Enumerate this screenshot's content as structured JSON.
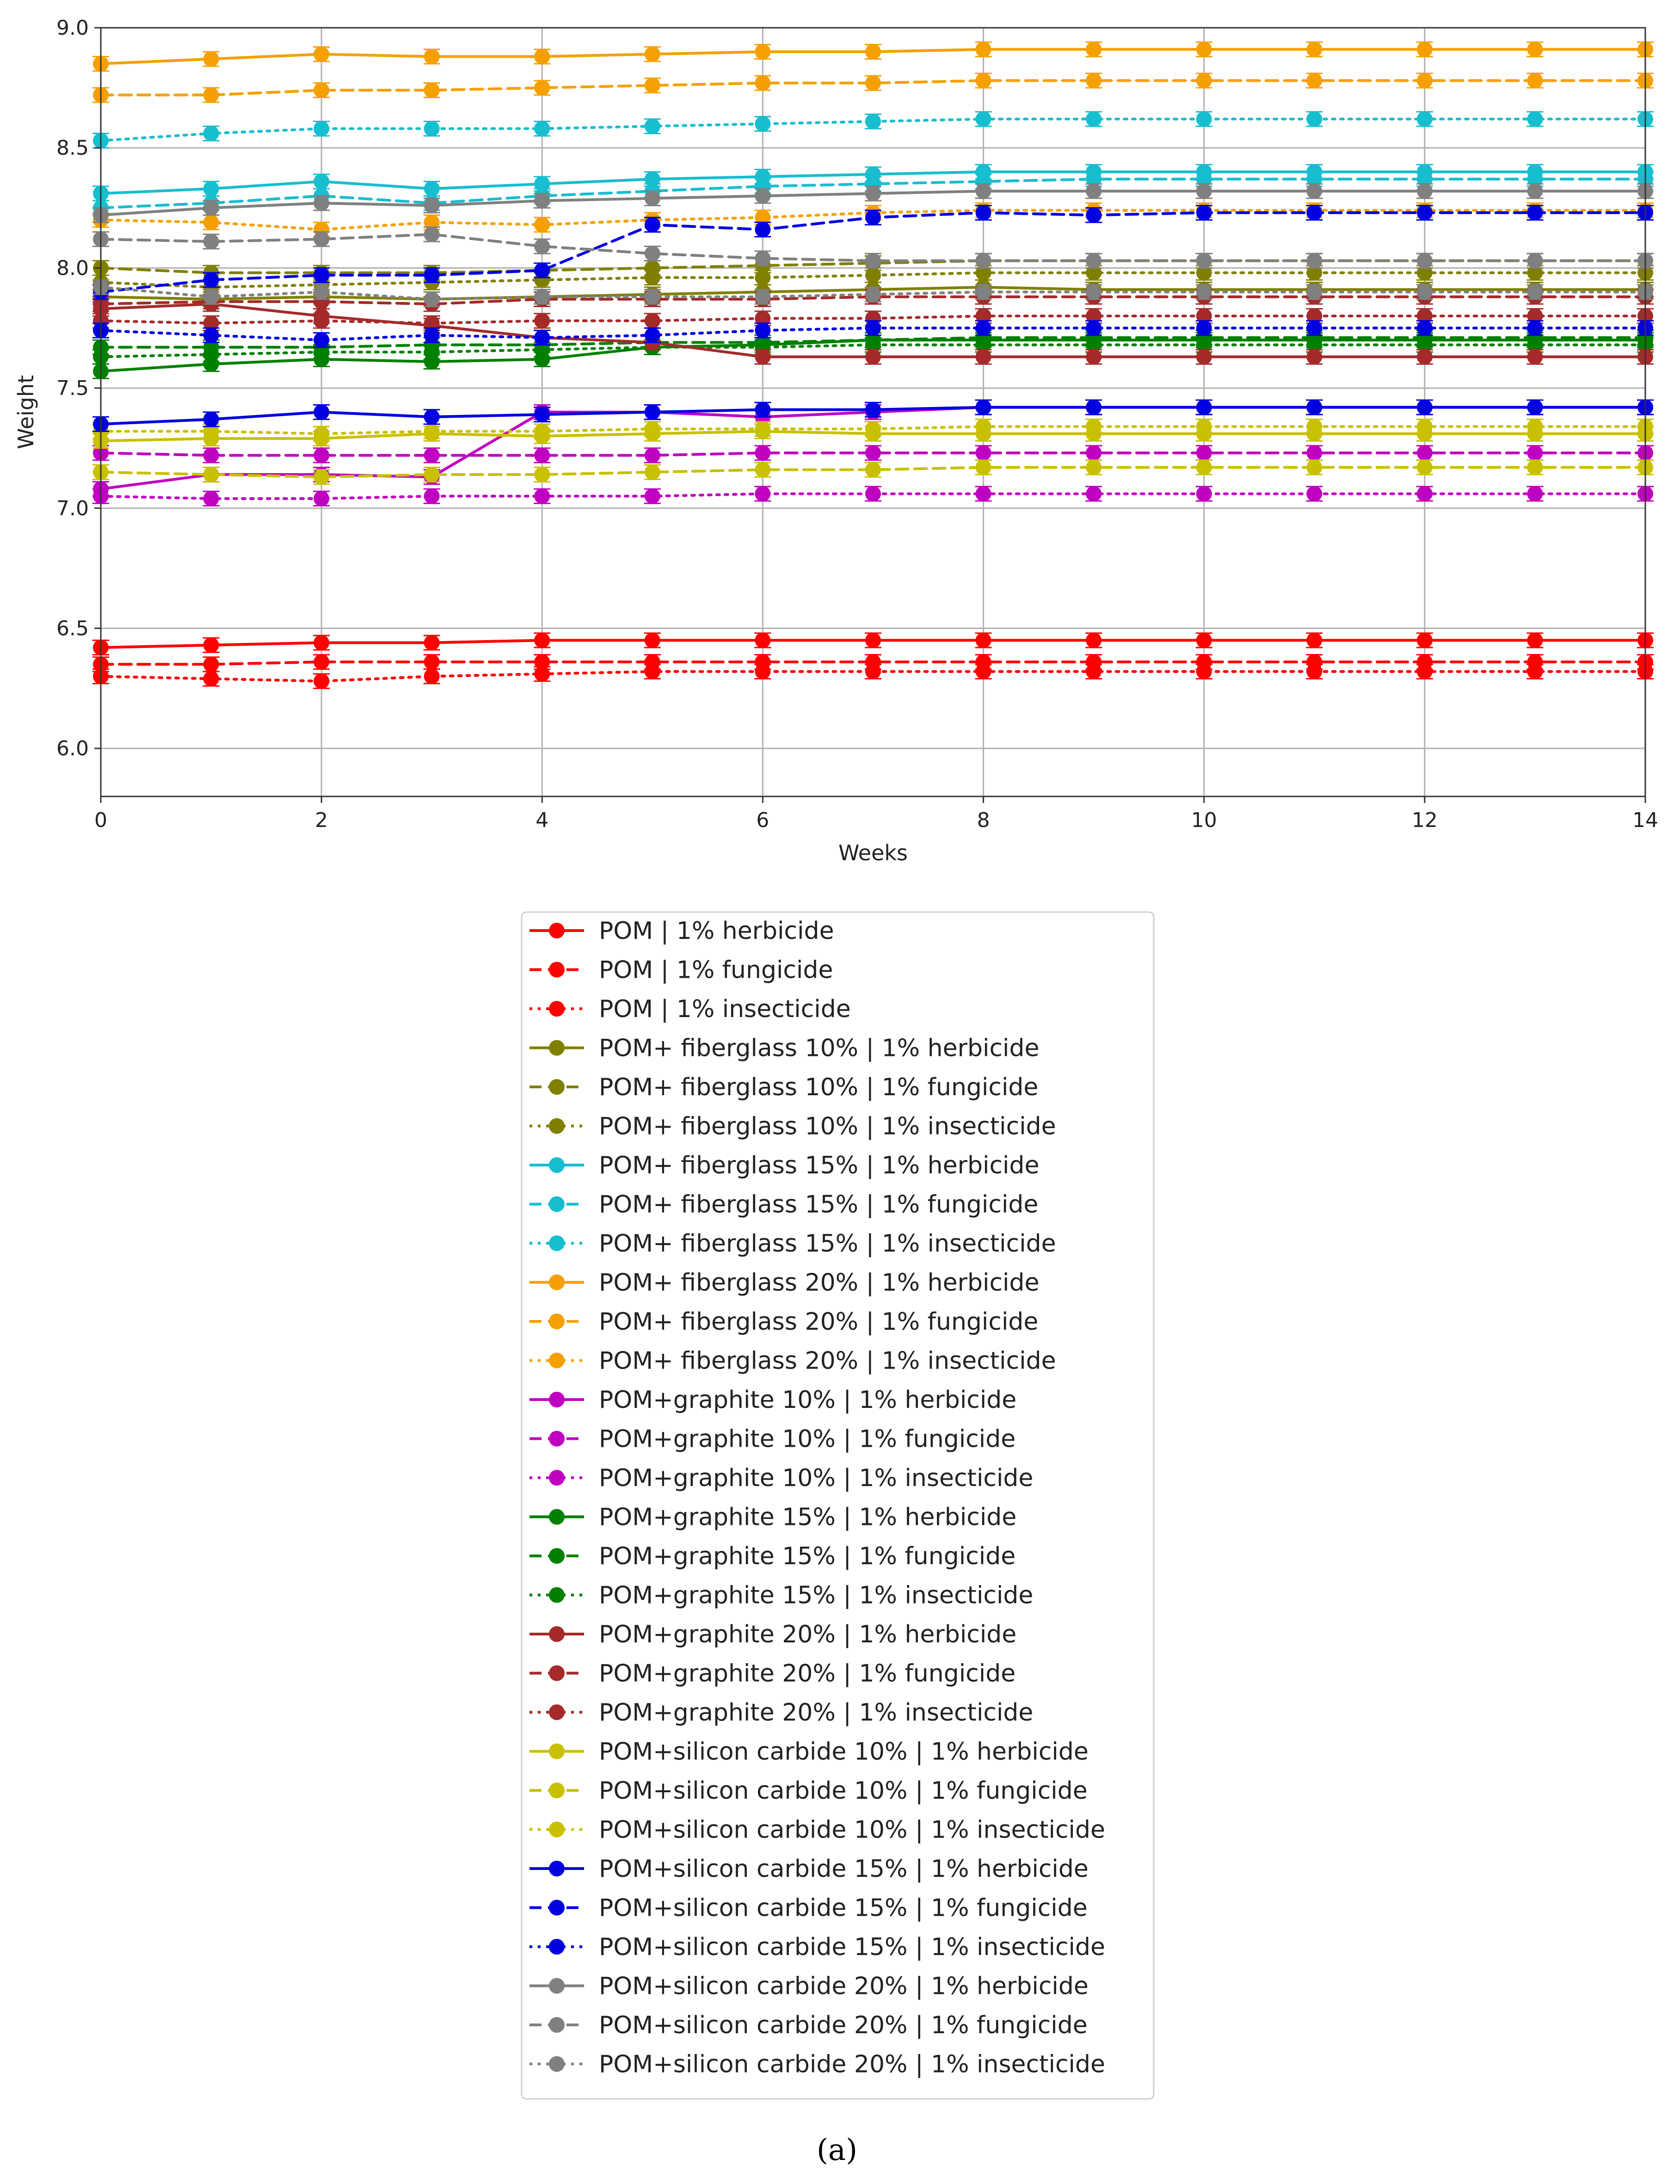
{
  "chart_data": {
    "type": "line",
    "title": "",
    "xlabel": "Weeks",
    "ylabel": "Weight",
    "xlim": [
      0,
      14
    ],
    "ylim": [
      5.8,
      9.0
    ],
    "xticks": [
      0,
      2,
      4,
      6,
      8,
      10,
      12,
      14
    ],
    "xtick_labels": [
      "0",
      "2",
      "4",
      "6",
      "8",
      "10",
      "12",
      "14"
    ],
    "yticks": [
      6.0,
      6.5,
      7.0,
      7.5,
      8.0,
      8.5,
      9.0
    ],
    "ytick_labels": [
      "6.0",
      "6.5",
      "7.0",
      "7.5",
      "8.0",
      "8.5",
      "9.0"
    ],
    "grid": true,
    "legend_position": "below",
    "caption": "(a)",
    "x": [
      0,
      1,
      2,
      3,
      4,
      5,
      6,
      7,
      8,
      9,
      10,
      11,
      12,
      13,
      14
    ],
    "series": [
      {
        "name": "POM | 1% herbicide",
        "color": "#ff0000",
        "dash": "solid",
        "values": [
          6.42,
          6.43,
          6.44,
          6.44,
          6.45,
          6.45,
          6.45,
          6.45,
          6.45,
          6.45,
          6.45,
          6.45,
          6.45,
          6.45,
          6.45
        ]
      },
      {
        "name": "POM | 1% fungicide",
        "color": "#ff0000",
        "dash": "dashed",
        "values": [
          6.35,
          6.35,
          6.36,
          6.36,
          6.36,
          6.36,
          6.36,
          6.36,
          6.36,
          6.36,
          6.36,
          6.36,
          6.36,
          6.36,
          6.36
        ]
      },
      {
        "name": "POM | 1% insecticide",
        "color": "#ff0000",
        "dash": "dotted",
        "values": [
          6.3,
          6.29,
          6.28,
          6.3,
          6.31,
          6.32,
          6.32,
          6.32,
          6.32,
          6.32,
          6.32,
          6.32,
          6.32,
          6.32,
          6.32
        ]
      },
      {
        "name": "POM+ fiberglass 10% | 1% herbicide",
        "color": "#808000",
        "dash": "solid",
        "values": [
          7.88,
          7.87,
          7.88,
          7.87,
          7.88,
          7.89,
          7.9,
          7.91,
          7.92,
          7.91,
          7.91,
          7.91,
          7.91,
          7.91,
          7.91
        ]
      },
      {
        "name": "POM+ fiberglass 10% | 1% fungicide",
        "color": "#808000",
        "dash": "dashed",
        "values": [
          8.0,
          7.98,
          7.98,
          7.98,
          7.99,
          8.0,
          8.01,
          8.02,
          8.03,
          8.03,
          8.03,
          8.03,
          8.03,
          8.03,
          8.03
        ]
      },
      {
        "name": "POM+ fiberglass 10% | 1% insecticide",
        "color": "#808000",
        "dash": "dotted",
        "values": [
          7.94,
          7.92,
          7.93,
          7.94,
          7.95,
          7.96,
          7.96,
          7.97,
          7.98,
          7.98,
          7.98,
          7.98,
          7.98,
          7.98,
          7.98
        ]
      },
      {
        "name": "POM+ fiberglass 15% | 1% herbicide",
        "color": "#17becf",
        "dash": "solid",
        "values": [
          8.31,
          8.33,
          8.36,
          8.33,
          8.35,
          8.37,
          8.38,
          8.39,
          8.4,
          8.4,
          8.4,
          8.4,
          8.4,
          8.4,
          8.4
        ]
      },
      {
        "name": "POM+ fiberglass 15% | 1% fungicide",
        "color": "#17becf",
        "dash": "dashed",
        "values": [
          8.25,
          8.27,
          8.3,
          8.27,
          8.3,
          8.32,
          8.34,
          8.35,
          8.36,
          8.37,
          8.37,
          8.37,
          8.37,
          8.37,
          8.37
        ]
      },
      {
        "name": "POM+ fiberglass 15% | 1% insecticide",
        "color": "#17becf",
        "dash": "dotted",
        "values": [
          8.53,
          8.56,
          8.58,
          8.58,
          8.58,
          8.59,
          8.6,
          8.61,
          8.62,
          8.62,
          8.62,
          8.62,
          8.62,
          8.62,
          8.62
        ]
      },
      {
        "name": "POM+ fiberglass 20% | 1% herbicide",
        "color": "#f5a000",
        "dash": "solid",
        "values": [
          8.85,
          8.87,
          8.89,
          8.88,
          8.88,
          8.89,
          8.9,
          8.9,
          8.91,
          8.91,
          8.91,
          8.91,
          8.91,
          8.91,
          8.91
        ]
      },
      {
        "name": "POM+ fiberglass 20% | 1% fungicide",
        "color": "#f5a000",
        "dash": "dashed",
        "values": [
          8.72,
          8.72,
          8.74,
          8.74,
          8.75,
          8.76,
          8.77,
          8.77,
          8.78,
          8.78,
          8.78,
          8.78,
          8.78,
          8.78,
          8.78
        ]
      },
      {
        "name": "POM+ fiberglass 20% | 1% insecticide",
        "color": "#f5a000",
        "dash": "dotted",
        "values": [
          8.2,
          8.19,
          8.16,
          8.19,
          8.18,
          8.2,
          8.21,
          8.23,
          8.24,
          8.24,
          8.24,
          8.24,
          8.24,
          8.24,
          8.24
        ]
      },
      {
        "name": "POM+graphite 10% | 1% herbicide",
        "color": "#c000c0",
        "dash": "solid",
        "values": [
          7.08,
          7.14,
          7.14,
          7.13,
          7.4,
          7.4,
          7.38,
          7.4,
          7.42,
          7.42,
          7.42,
          7.42,
          7.42,
          7.42,
          7.42
        ]
      },
      {
        "name": "POM+graphite 10% | 1% fungicide",
        "color": "#c000c0",
        "dash": "dashed",
        "values": [
          7.23,
          7.22,
          7.22,
          7.22,
          7.22,
          7.22,
          7.23,
          7.23,
          7.23,
          7.23,
          7.23,
          7.23,
          7.23,
          7.23,
          7.23
        ]
      },
      {
        "name": "POM+graphite 10% | 1% insecticide",
        "color": "#c000c0",
        "dash": "dotted",
        "values": [
          7.05,
          7.04,
          7.04,
          7.05,
          7.05,
          7.05,
          7.06,
          7.06,
          7.06,
          7.06,
          7.06,
          7.06,
          7.06,
          7.06,
          7.06
        ]
      },
      {
        "name": "POM+graphite 15% | 1% herbicide",
        "color": "#008000",
        "dash": "solid",
        "values": [
          7.57,
          7.6,
          7.62,
          7.61,
          7.62,
          7.67,
          7.68,
          7.7,
          7.7,
          7.7,
          7.7,
          7.7,
          7.7,
          7.7,
          7.7
        ]
      },
      {
        "name": "POM+graphite 15% | 1% fungicide",
        "color": "#008000",
        "dash": "dashed",
        "values": [
          7.67,
          7.67,
          7.67,
          7.68,
          7.68,
          7.69,
          7.69,
          7.7,
          7.71,
          7.71,
          7.71,
          7.71,
          7.71,
          7.71,
          7.71
        ]
      },
      {
        "name": "POM+graphite 15% | 1% insecticide",
        "color": "#008000",
        "dash": "dotted",
        "values": [
          7.63,
          7.64,
          7.65,
          7.65,
          7.66,
          7.67,
          7.67,
          7.68,
          7.68,
          7.68,
          7.68,
          7.68,
          7.68,
          7.68,
          7.68
        ]
      },
      {
        "name": "POM+graphite 20% | 1% herbicide",
        "color": "#a52a2a",
        "dash": "solid",
        "values": [
          7.83,
          7.85,
          7.8,
          7.76,
          7.71,
          7.69,
          7.63,
          7.63,
          7.63,
          7.63,
          7.63,
          7.63,
          7.63,
          7.63,
          7.63
        ]
      },
      {
        "name": "POM+graphite 20% | 1% fungicide",
        "color": "#a52a2a",
        "dash": "dashed",
        "values": [
          7.85,
          7.86,
          7.86,
          7.85,
          7.87,
          7.87,
          7.87,
          7.88,
          7.88,
          7.88,
          7.88,
          7.88,
          7.88,
          7.88,
          7.88
        ]
      },
      {
        "name": "POM+graphite 20% | 1% insecticide",
        "color": "#a52a2a",
        "dash": "dotted",
        "values": [
          7.78,
          7.77,
          7.78,
          7.77,
          7.78,
          7.78,
          7.79,
          7.79,
          7.8,
          7.8,
          7.8,
          7.8,
          7.8,
          7.8,
          7.8
        ]
      },
      {
        "name": "POM+silicon carbide 10% | 1% herbicide",
        "color": "#c8c000",
        "dash": "solid",
        "values": [
          7.28,
          7.29,
          7.29,
          7.31,
          7.3,
          7.31,
          7.32,
          7.31,
          7.31,
          7.31,
          7.31,
          7.31,
          7.31,
          7.31,
          7.31
        ]
      },
      {
        "name": "POM+silicon carbide 10% | 1% fungicide",
        "color": "#c8c000",
        "dash": "dashed",
        "values": [
          7.15,
          7.14,
          7.13,
          7.14,
          7.14,
          7.15,
          7.16,
          7.16,
          7.17,
          7.17,
          7.17,
          7.17,
          7.17,
          7.17,
          7.17
        ]
      },
      {
        "name": "POM+silicon carbide 10% | 1% insecticide",
        "color": "#c8c000",
        "dash": "dotted",
        "values": [
          7.32,
          7.32,
          7.31,
          7.32,
          7.32,
          7.33,
          7.33,
          7.33,
          7.34,
          7.34,
          7.34,
          7.34,
          7.34,
          7.34,
          7.34
        ]
      },
      {
        "name": "POM+silicon carbide 15% | 1% herbicide",
        "color": "#0000e0",
        "dash": "solid",
        "values": [
          7.35,
          7.37,
          7.4,
          7.38,
          7.39,
          7.4,
          7.41,
          7.41,
          7.42,
          7.42,
          7.42,
          7.42,
          7.42,
          7.42,
          7.42
        ]
      },
      {
        "name": "POM+silicon carbide 15% | 1% fungicide",
        "color": "#0000e0",
        "dash": "dashed",
        "values": [
          7.9,
          7.95,
          7.97,
          7.97,
          7.99,
          8.18,
          8.16,
          8.21,
          8.23,
          8.22,
          8.23,
          8.23,
          8.23,
          8.23,
          8.23
        ]
      },
      {
        "name": "POM+silicon carbide 15% | 1% insecticide",
        "color": "#0000e0",
        "dash": "dotted",
        "values": [
          7.74,
          7.72,
          7.7,
          7.72,
          7.71,
          7.72,
          7.74,
          7.75,
          7.75,
          7.75,
          7.75,
          7.75,
          7.75,
          7.75,
          7.75
        ]
      },
      {
        "name": "POM+silicon carbide 20% | 1% herbicide",
        "color": "#808080",
        "dash": "solid",
        "values": [
          8.22,
          8.25,
          8.27,
          8.26,
          8.28,
          8.29,
          8.3,
          8.31,
          8.32,
          8.32,
          8.32,
          8.32,
          8.32,
          8.32,
          8.32
        ]
      },
      {
        "name": "POM+silicon carbide 20% | 1% fungicide",
        "color": "#808080",
        "dash": "dashed",
        "values": [
          8.12,
          8.11,
          8.12,
          8.14,
          8.09,
          8.06,
          8.04,
          8.03,
          8.03,
          8.03,
          8.03,
          8.03,
          8.03,
          8.03,
          8.03
        ]
      },
      {
        "name": "POM+silicon carbide 20% | 1% insecticide",
        "color": "#808080",
        "dash": "dotted",
        "values": [
          7.92,
          7.88,
          7.9,
          7.87,
          7.88,
          7.88,
          7.88,
          7.89,
          7.9,
          7.9,
          7.9,
          7.9,
          7.9,
          7.9,
          7.9
        ]
      }
    ]
  }
}
